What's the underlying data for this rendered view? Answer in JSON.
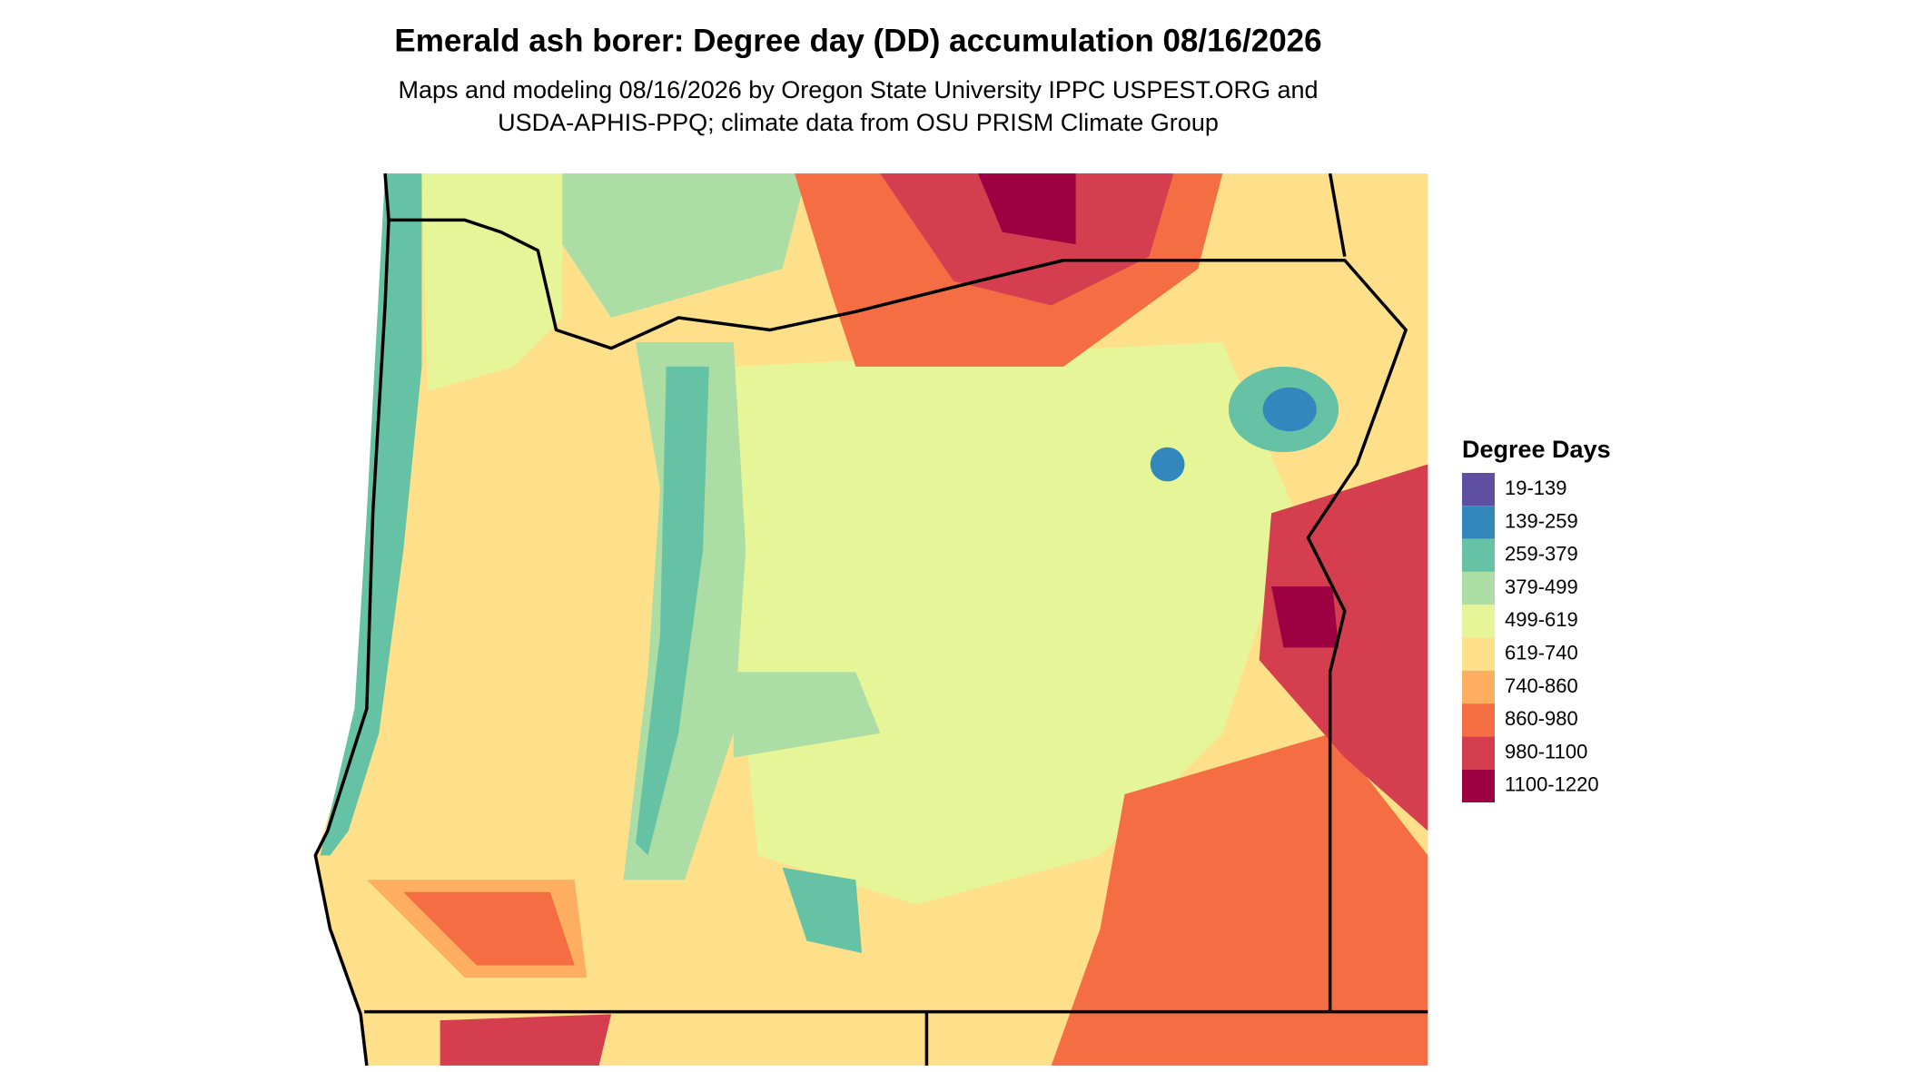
{
  "title": "Emerald ash borer: Degree day (DD) accumulation 08/16/2026",
  "subtitle": [
    "Maps and modeling 08/16/2026 by Oregon State University IPPC USPEST.ORG and",
    "USDA-APHIS-PPQ; climate data from OSU PRISM Climate Group"
  ],
  "legend": {
    "title": "Degree Days",
    "items": [
      {
        "label": "19-139",
        "color": "#5e4fa2"
      },
      {
        "label": "139-259",
        "color": "#3288bd"
      },
      {
        "label": "259-379",
        "color": "#66c2a5"
      },
      {
        "label": "379-499",
        "color": "#abdda4"
      },
      {
        "label": "499-619",
        "color": "#e6f598"
      },
      {
        "label": "619-740",
        "color": "#fee08b"
      },
      {
        "label": "740-860",
        "color": "#fdae61"
      },
      {
        "label": "860-980",
        "color": "#f46d43"
      },
      {
        "label": "980-1100",
        "color": "#d53e4f"
      },
      {
        "label": "1100-1220",
        "color": "#9e0142"
      }
    ]
  }
}
